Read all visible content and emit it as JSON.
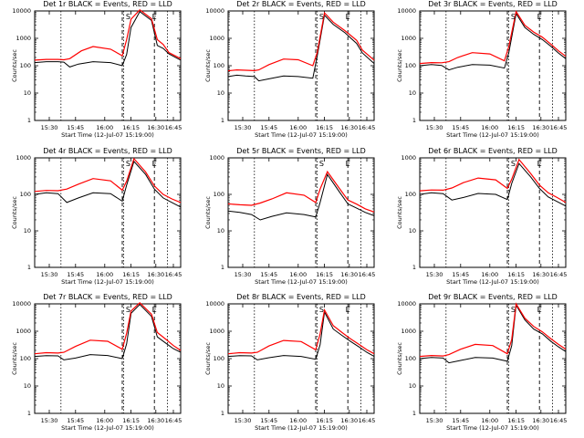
{
  "chart_data": [
    {
      "type": "line",
      "title": "Det 1r BLACK = Events, RED = LLD",
      "xlabel": "Start Time (12-Jul-07 15:19:00)",
      "ylabel": "Counts/sec",
      "x_ticks": [
        "15:30",
        "15:45",
        "16:00",
        "16:15",
        "16:30",
        "16:45"
      ],
      "y_ticks": [
        "1",
        "10",
        "100",
        "1000",
        "10000"
      ],
      "ylim": [
        1,
        10000
      ],
      "scale": "log",
      "markers": [
        "S",
        "E"
      ],
      "series": [
        {
          "name": "Events",
          "color": "#000000",
          "style": "black"
        },
        {
          "name": "LLD",
          "color": "#ff0000",
          "style": "red"
        }
      ],
      "style_key": "p1"
    },
    {
      "type": "line",
      "title": "Det 2r BLACK = Events, RED = LLD",
      "xlabel": "Start Time (12-Jul-07 15:19:00)",
      "ylabel": "Counts/sec",
      "x_ticks": [
        "15:30",
        "15:45",
        "16:00",
        "16:15",
        "16:30",
        "16:45"
      ],
      "y_ticks": [
        "1",
        "10",
        "100",
        "1000",
        "10000"
      ],
      "ylim": [
        1,
        10000
      ],
      "scale": "log",
      "markers": [
        "S",
        "E"
      ],
      "series": [
        {
          "name": "Events",
          "color": "#000000",
          "style": "black"
        },
        {
          "name": "LLD",
          "color": "#ff0000",
          "style": "red"
        }
      ],
      "style_key": "p2"
    },
    {
      "type": "line",
      "title": "Det 3r BLACK = Events, RED = LLD",
      "xlabel": "Start Time (12-Jul-07 15:19:00)",
      "ylabel": "Counts/sec",
      "x_ticks": [
        "15:30",
        "15:45",
        "16:00",
        "16:15",
        "16:30",
        "16:45"
      ],
      "y_ticks": [
        "1",
        "10",
        "100",
        "1000",
        "10000"
      ],
      "ylim": [
        1,
        10000
      ],
      "scale": "log",
      "markers": [
        "S",
        "E"
      ],
      "series": [
        {
          "name": "Events",
          "color": "#000000",
          "style": "black"
        },
        {
          "name": "LLD",
          "color": "#ff0000",
          "style": "red"
        }
      ],
      "style_key": "p3"
    },
    {
      "type": "line",
      "title": "Det 4r BLACK = Events, RED = LLD",
      "xlabel": "Start Time (12-Jul-07 15:19:00)",
      "ylabel": "Counts/sec",
      "x_ticks": [
        "15:30",
        "15:45",
        "16:00",
        "16:15",
        "16:30",
        "16:45"
      ],
      "y_ticks": [
        "1",
        "10",
        "100",
        "1000"
      ],
      "ylim": [
        1,
        1000
      ],
      "scale": "log",
      "markers": [
        "S",
        "E"
      ],
      "series": [
        {
          "name": "Events",
          "color": "#000000",
          "style": "black"
        },
        {
          "name": "LLD",
          "color": "#ff0000",
          "style": "red"
        }
      ],
      "style_key": "p4"
    },
    {
      "type": "line",
      "title": "Det 5r BLACK = Events, RED = LLD",
      "xlabel": "Start Time (12-Jul-07 15:19:00)",
      "ylabel": "Counts/sec",
      "x_ticks": [
        "15:30",
        "15:45",
        "16:00",
        "16:15",
        "16:30",
        "16:45"
      ],
      "y_ticks": [
        "1",
        "10",
        "100",
        "1000"
      ],
      "ylim": [
        1,
        1000
      ],
      "scale": "log",
      "markers": [
        "S",
        "E"
      ],
      "series": [
        {
          "name": "Events",
          "color": "#000000",
          "style": "black"
        },
        {
          "name": "LLD",
          "color": "#ff0000",
          "style": "red"
        }
      ],
      "style_key": "p5"
    },
    {
      "type": "line",
      "title": "Det 6r BLACK = Events, RED = LLD",
      "xlabel": "Start Time (12-Jul-07 15:19:00)",
      "ylabel": "Counts/sec",
      "x_ticks": [
        "15:30",
        "15:45",
        "16:00",
        "16:15",
        "16:30",
        "16:45"
      ],
      "y_ticks": [
        "1",
        "10",
        "100",
        "1000"
      ],
      "ylim": [
        1,
        1000
      ],
      "scale": "log",
      "markers": [
        "S",
        "E"
      ],
      "series": [
        {
          "name": "Events",
          "color": "#000000",
          "style": "black"
        },
        {
          "name": "LLD",
          "color": "#ff0000",
          "style": "red"
        }
      ],
      "style_key": "p6"
    },
    {
      "type": "line",
      "title": "Det 7r BLACK = Events, RED = LLD",
      "xlabel": "Start Time (12-Jul-07 15:19:00)",
      "ylabel": "Counts/sec",
      "x_ticks": [
        "15:30",
        "15:45",
        "16:00",
        "16:15",
        "16:30",
        "16:45"
      ],
      "y_ticks": [
        "1",
        "10",
        "100",
        "1000",
        "10000"
      ],
      "ylim": [
        1,
        10000
      ],
      "scale": "log",
      "markers": [
        "S",
        "E"
      ],
      "series": [
        {
          "name": "Events",
          "color": "#000000",
          "style": "black"
        },
        {
          "name": "LLD",
          "color": "#ff0000",
          "style": "red"
        }
      ],
      "style_key": "p7"
    },
    {
      "type": "line",
      "title": "Det 8r BLACK = Events, RED = LLD",
      "xlabel": "Start Time (12-Jul-07 15:19:00)",
      "ylabel": "Counts/sec",
      "x_ticks": [
        "15:30",
        "15:45",
        "16:00",
        "16:15",
        "16:30",
        "16:45"
      ],
      "y_ticks": [
        "1",
        "10",
        "100",
        "1000",
        "10000"
      ],
      "ylim": [
        1,
        10000
      ],
      "scale": "log",
      "markers": [
        "S",
        "E"
      ],
      "series": [
        {
          "name": "Events",
          "color": "#000000",
          "style": "black"
        },
        {
          "name": "LLD",
          "color": "#ff0000",
          "style": "red"
        }
      ],
      "style_key": "p8"
    },
    {
      "type": "line",
      "title": "Det 9r BLACK = Events, RED = LLD",
      "xlabel": "Start Time (12-Jul-07 15:19:00)",
      "ylabel": "Counts/sec",
      "x_ticks": [
        "15:30",
        "15:45",
        "16:00",
        "16:15",
        "16:30",
        "16:45"
      ],
      "y_ticks": [
        "1",
        "10",
        "100",
        "1000",
        "10000"
      ],
      "ylim": [
        1,
        10000
      ],
      "scale": "log",
      "markers": [
        "S",
        "E"
      ],
      "series": [
        {
          "name": "Events",
          "color": "#000000",
          "style": "black"
        },
        {
          "name": "LLD",
          "color": "#ff0000",
          "style": "red"
        }
      ],
      "style_key": "p9"
    }
  ]
}
